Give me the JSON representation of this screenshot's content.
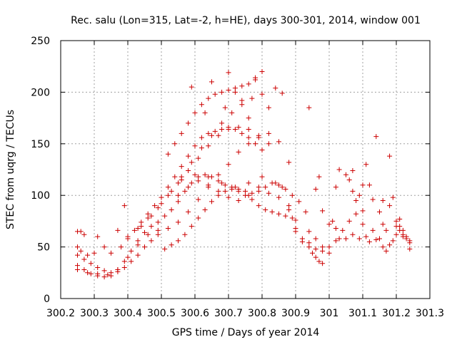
{
  "chart_data": {
    "type": "scatter",
    "title": "Rec. salu (Lon=315, Lat=-2, h=HE), days 300-301, 2014, window 001",
    "xlabel": "GPS time / Days of year 2014",
    "ylabel": "STEC from uqrg / TECUs",
    "xlim": [
      300.2,
      301.3
    ],
    "ylim": [
      0,
      250
    ],
    "x_ticks": [
      300.2,
      300.3,
      300.4,
      300.5,
      300.6,
      300.7,
      300.8,
      300.9,
      301.0,
      301.1,
      301.2,
      301.3
    ],
    "x_tick_labels": [
      "300.2",
      "300.3",
      "300.4",
      "300.5",
      "300.6",
      "300.7",
      "300.8",
      "300.9",
      "301",
      "301.1",
      "301.2",
      "301.3"
    ],
    "y_ticks": [
      0,
      50,
      100,
      150,
      200,
      250
    ],
    "y_tick_labels": [
      "0",
      "50",
      "100",
      "150",
      "200",
      "250"
    ],
    "grid": true,
    "marker": "plus",
    "colors": {
      "points": "#cc0000",
      "grid": "#a0a0a0",
      "axes": "#000000"
    },
    "series": [
      {
        "points": [
          [
            300.25,
            65
          ],
          [
            300.26,
            65
          ],
          [
            300.27,
            62
          ],
          [
            300.25,
            50
          ],
          [
            300.26,
            46
          ],
          [
            300.28,
            42
          ],
          [
            300.3,
            44
          ],
          [
            300.31,
            60
          ],
          [
            300.33,
            50
          ],
          [
            300.35,
            44
          ],
          [
            300.37,
            66
          ],
          [
            300.39,
            90
          ],
          [
            300.25,
            42
          ],
          [
            300.27,
            38
          ],
          [
            300.29,
            34
          ],
          [
            300.31,
            30
          ],
          [
            300.33,
            27
          ],
          [
            300.35,
            25
          ],
          [
            300.37,
            26
          ],
          [
            300.39,
            30
          ],
          [
            300.41,
            36
          ],
          [
            300.43,
            42
          ],
          [
            300.45,
            50
          ],
          [
            300.47,
            56
          ],
          [
            300.49,
            62
          ],
          [
            300.25,
            32
          ],
          [
            300.27,
            28
          ],
          [
            300.29,
            24
          ],
          [
            300.31,
            22
          ],
          [
            300.33,
            21
          ],
          [
            300.35,
            22
          ],
          [
            300.37,
            28
          ],
          [
            300.39,
            36
          ],
          [
            300.41,
            46
          ],
          [
            300.43,
            56
          ],
          [
            300.45,
            64
          ],
          [
            300.47,
            70
          ],
          [
            300.49,
            74
          ],
          [
            300.51,
            80
          ],
          [
            300.53,
            86
          ],
          [
            300.55,
            94
          ],
          [
            300.57,
            104
          ],
          [
            300.59,
            112
          ],
          [
            300.61,
            118
          ],
          [
            300.63,
            120
          ],
          [
            300.65,
            118
          ],
          [
            300.67,
            114
          ],
          [
            300.69,
            110
          ],
          [
            300.71,
            108
          ],
          [
            300.73,
            106
          ],
          [
            300.75,
            104
          ],
          [
            300.77,
            102
          ],
          [
            300.79,
            104
          ],
          [
            300.81,
            108
          ],
          [
            300.83,
            112
          ],
          [
            300.85,
            110
          ],
          [
            300.87,
            106
          ],
          [
            300.89,
            100
          ],
          [
            300.91,
            94
          ],
          [
            300.93,
            84
          ],
          [
            300.25,
            28
          ],
          [
            300.28,
            25
          ],
          [
            300.31,
            24
          ],
          [
            300.34,
            23
          ],
          [
            300.37,
            28
          ],
          [
            300.4,
            40
          ],
          [
            300.43,
            52
          ],
          [
            300.46,
            62
          ],
          [
            300.49,
            66
          ],
          [
            300.52,
            68
          ],
          [
            300.55,
            74
          ],
          [
            300.58,
            84
          ],
          [
            300.61,
            96
          ],
          [
            300.64,
            108
          ],
          [
            300.67,
            120
          ],
          [
            300.7,
            130
          ],
          [
            300.73,
            142
          ],
          [
            300.76,
            150
          ],
          [
            300.79,
            156
          ],
          [
            300.82,
            160
          ],
          [
            300.85,
            152
          ],
          [
            300.88,
            132
          ],
          [
            300.38,
            50
          ],
          [
            300.4,
            58
          ],
          [
            300.42,
            66
          ],
          [
            300.44,
            74
          ],
          [
            300.46,
            82
          ],
          [
            300.48,
            90
          ],
          [
            300.5,
            98
          ],
          [
            300.52,
            108
          ],
          [
            300.54,
            118
          ],
          [
            300.56,
            128
          ],
          [
            300.58,
            138
          ],
          [
            300.6,
            148
          ],
          [
            300.62,
            156
          ],
          [
            300.64,
            160
          ],
          [
            300.66,
            162
          ],
          [
            300.68,
            164
          ],
          [
            300.7,
            166
          ],
          [
            300.72,
            164
          ],
          [
            300.74,
            160
          ],
          [
            300.76,
            156
          ],
          [
            300.78,
            150
          ],
          [
            300.8,
            144
          ],
          [
            300.4,
            60
          ],
          [
            300.43,
            68
          ],
          [
            300.46,
            78
          ],
          [
            300.49,
            88
          ],
          [
            300.52,
            100
          ],
          [
            300.55,
            112
          ],
          [
            300.58,
            124
          ],
          [
            300.61,
            136
          ],
          [
            300.64,
            148
          ],
          [
            300.67,
            158
          ],
          [
            300.7,
            164
          ],
          [
            300.73,
            166
          ],
          [
            300.76,
            164
          ],
          [
            300.79,
            158
          ],
          [
            300.82,
            150
          ],
          [
            300.44,
            70
          ],
          [
            300.47,
            80
          ],
          [
            300.5,
            92
          ],
          [
            300.53,
            104
          ],
          [
            300.56,
            118
          ],
          [
            300.59,
            132
          ],
          [
            300.62,
            146
          ],
          [
            300.65,
            158
          ],
          [
            300.68,
            170
          ],
          [
            300.71,
            180
          ],
          [
            300.74,
            188
          ],
          [
            300.77,
            194
          ],
          [
            300.8,
            198
          ],
          [
            300.52,
            140
          ],
          [
            300.54,
            150
          ],
          [
            300.56,
            160
          ],
          [
            300.58,
            170
          ],
          [
            300.6,
            180
          ],
          [
            300.62,
            188
          ],
          [
            300.64,
            194
          ],
          [
            300.66,
            198
          ],
          [
            300.68,
            200
          ],
          [
            300.7,
            202
          ],
          [
            300.72,
            204
          ],
          [
            300.74,
            206
          ],
          [
            300.76,
            208
          ],
          [
            300.78,
            212
          ],
          [
            300.8,
            220
          ],
          [
            300.59,
            205
          ],
          [
            300.63,
            180
          ],
          [
            300.65,
            210
          ],
          [
            300.69,
            185
          ],
          [
            300.7,
            219
          ],
          [
            300.72,
            200
          ],
          [
            300.74,
            192
          ],
          [
            300.76,
            175
          ],
          [
            300.78,
            214
          ],
          [
            300.82,
            185
          ],
          [
            300.84,
            204
          ],
          [
            300.86,
            199
          ],
          [
            300.51,
            48
          ],
          [
            300.53,
            52
          ],
          [
            300.55,
            56
          ],
          [
            300.57,
            62
          ],
          [
            300.59,
            70
          ],
          [
            300.61,
            78
          ],
          [
            300.63,
            86
          ],
          [
            300.65,
            94
          ],
          [
            300.67,
            100
          ],
          [
            300.69,
            104
          ],
          [
            300.71,
            106
          ],
          [
            300.73,
            104
          ],
          [
            300.75,
            100
          ],
          [
            300.77,
            96
          ],
          [
            300.79,
            90
          ],
          [
            300.81,
            86
          ],
          [
            300.83,
            84
          ],
          [
            300.85,
            82
          ],
          [
            300.87,
            80
          ],
          [
            300.89,
            78
          ],
          [
            300.55,
            100
          ],
          [
            300.58,
            108
          ],
          [
            300.61,
            114
          ],
          [
            300.64,
            110
          ],
          [
            300.67,
            104
          ],
          [
            300.7,
            98
          ],
          [
            300.73,
            95
          ],
          [
            300.76,
            100
          ],
          [
            300.79,
            108
          ],
          [
            300.82,
            102
          ],
          [
            300.85,
            98
          ],
          [
            300.88,
            86
          ],
          [
            300.9,
            76
          ],
          [
            300.56,
            115
          ],
          [
            300.6,
            120
          ],
          [
            300.64,
            118
          ],
          [
            300.68,
            112
          ],
          [
            300.72,
            108
          ],
          [
            300.76,
            112
          ],
          [
            300.8,
            118
          ],
          [
            300.84,
            112
          ],
          [
            300.86,
            108
          ],
          [
            300.88,
            90
          ],
          [
            300.9,
            68
          ],
          [
            300.92,
            55
          ],
          [
            300.94,
            50
          ],
          [
            300.95,
            44
          ],
          [
            300.96,
            40
          ],
          [
            300.97,
            36
          ],
          [
            300.98,
            34
          ],
          [
            300.9,
            65
          ],
          [
            300.92,
            58
          ],
          [
            300.94,
            54
          ],
          [
            300.96,
            48
          ],
          [
            300.98,
            46
          ],
          [
            301.0,
            50
          ],
          [
            301.02,
            56
          ],
          [
            300.94,
            185
          ],
          [
            300.96,
            106
          ],
          [
            300.97,
            118
          ],
          [
            300.98,
            85
          ],
          [
            301.0,
            72
          ],
          [
            301.02,
            68
          ],
          [
            301.03,
            58
          ],
          [
            300.94,
            65
          ],
          [
            300.96,
            58
          ],
          [
            300.98,
            50
          ],
          [
            301.0,
            44
          ],
          [
            301.01,
            75
          ],
          [
            301.02,
            108
          ],
          [
            301.03,
            125
          ],
          [
            301.05,
            120
          ],
          [
            301.06,
            115
          ],
          [
            301.07,
            104
          ],
          [
            301.08,
            95
          ],
          [
            301.1,
            85
          ],
          [
            301.04,
            66
          ],
          [
            301.06,
            75
          ],
          [
            301.08,
            82
          ],
          [
            301.09,
            100
          ],
          [
            301.1,
            110
          ],
          [
            301.11,
            130
          ],
          [
            301.12,
            110
          ],
          [
            301.13,
            96
          ],
          [
            301.14,
            157
          ],
          [
            301.15,
            84
          ],
          [
            301.16,
            72
          ],
          [
            301.17,
            66
          ],
          [
            301.18,
            138
          ],
          [
            301.19,
            98
          ],
          [
            301.2,
            75
          ],
          [
            301.21,
            66
          ],
          [
            301.22,
            62
          ],
          [
            301.23,
            58
          ],
          [
            301.24,
            56
          ],
          [
            301.05,
            58
          ],
          [
            301.07,
            62
          ],
          [
            301.09,
            58
          ],
          [
            301.11,
            60
          ],
          [
            301.13,
            66
          ],
          [
            301.15,
            58
          ],
          [
            301.16,
            50
          ],
          [
            301.17,
            46
          ],
          [
            301.18,
            52
          ],
          [
            301.19,
            56
          ],
          [
            301.2,
            62
          ],
          [
            301.21,
            70
          ],
          [
            301.22,
            66
          ],
          [
            301.23,
            60
          ],
          [
            301.24,
            54
          ],
          [
            301.24,
            48
          ],
          [
            301.07,
            124
          ],
          [
            301.1,
            72
          ],
          [
            301.12,
            55
          ],
          [
            301.14,
            57
          ],
          [
            301.16,
            95
          ],
          [
            301.18,
            90
          ],
          [
            301.2,
            70
          ],
          [
            301.21,
            77
          ],
          [
            301.22,
            60
          ]
        ]
      }
    ]
  }
}
